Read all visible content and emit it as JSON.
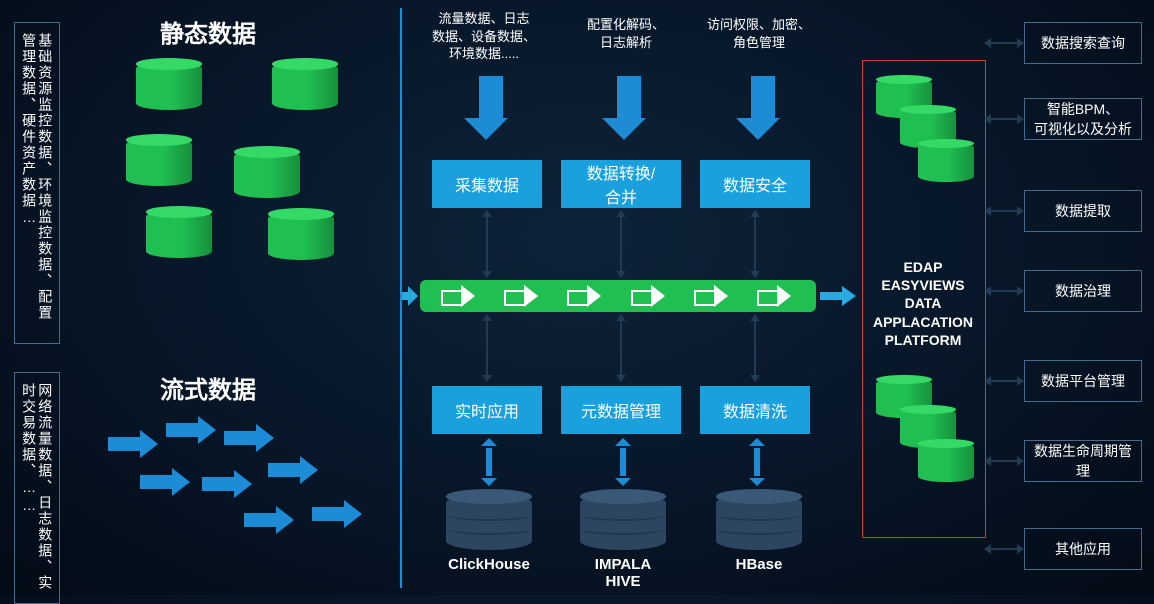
{
  "colors": {
    "green": "#1fbf51",
    "greenTop": "#34d966",
    "greenDark": "#169a3f",
    "blue": "#1e8bd6",
    "blueLight": "#29a9e0",
    "boxBlue": "#1aa0dc",
    "navy": "#2c4560",
    "navyLight": "#3a5877",
    "navyDark": "#22364d",
    "red": "#d93a2b",
    "border": "#4a6a8a",
    "arrowDark": "#233b52"
  },
  "leftBoxes": {
    "top": "基础资源监控数据、环境监控数据、配置管理数据、硬件资产数据…",
    "bottom": "网络流量数据、日志数据、实时交易数据、……"
  },
  "titles": {
    "static": "静态数据",
    "stream": "流式数据"
  },
  "topLabels": {
    "a": "流量数据、日志\n数据、设备数据、\n环境数据.....",
    "b": "配置化解码、\n日志解析",
    "c": "访问权限、加密、\n角色管理"
  },
  "procTop": {
    "a": "采集数据",
    "b": "数据转换/合并",
    "c": "数据安全"
  },
  "procBot": {
    "a": "实时应用",
    "b": "元数据管理",
    "c": "数据清洗"
  },
  "db": {
    "a": "ClickHouse",
    "b": "IMPALA\nHIVE",
    "c": "HBase"
  },
  "edap": {
    "l1": "EDAP",
    "l2": "EASYVIEWS",
    "l3": "DATA",
    "l4": "APPLACATION",
    "l5": "PLATFORM"
  },
  "right": {
    "r1": "数据搜索查询",
    "r2": "智能BPM、\n可视化以及分析",
    "r3": "数据提取",
    "r4": "数据治理",
    "r5": "数据平台管理",
    "r6": "数据生命周期管理",
    "r7": "其他应用"
  },
  "layout": {
    "procX": [
      432,
      561,
      700
    ],
    "procW": [
      110,
      120,
      110
    ],
    "rightY": [
      22,
      98,
      190,
      270,
      360,
      440,
      528
    ]
  }
}
